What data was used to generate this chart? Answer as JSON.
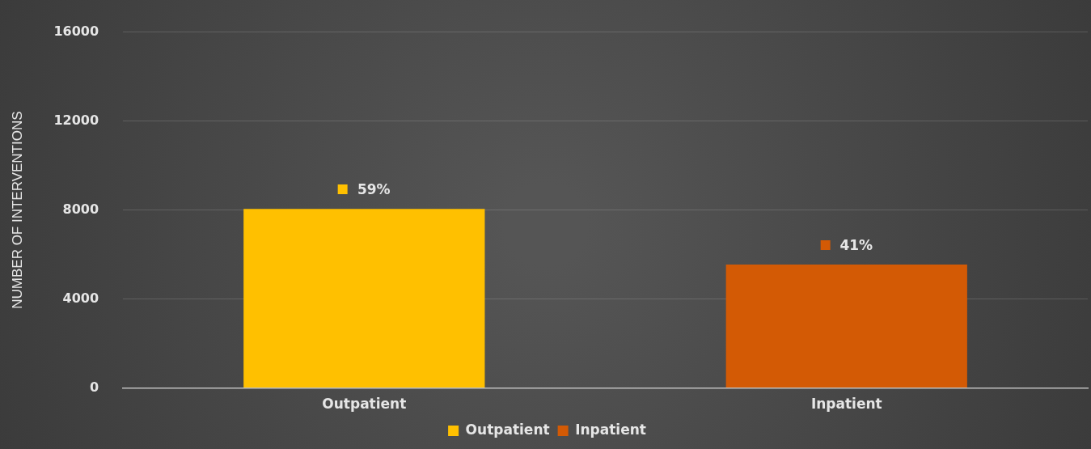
{
  "chart_data": {
    "type": "bar",
    "ylabel": "NUMBER OF INTERVENTIONS",
    "categories": [
      "Outpatient",
      "Inpatient"
    ],
    "series": [
      {
        "name": "Outpatient",
        "color": "#ffc000",
        "values": [
          8050,
          null
        ]
      },
      {
        "name": "Inpatient",
        "color": "#d35a05",
        "values": [
          null,
          5550
        ]
      }
    ],
    "annotations": [
      {
        "text": "59%",
        "x": "Outpatient",
        "y": 8050
      },
      {
        "text": "41%",
        "x": "Inpatient",
        "y": 5550
      }
    ],
    "ylim": [
      0,
      16000
    ],
    "yticks": [
      0,
      4000,
      8000,
      12000,
      16000
    ],
    "grid": "y",
    "legend": "bottom"
  }
}
